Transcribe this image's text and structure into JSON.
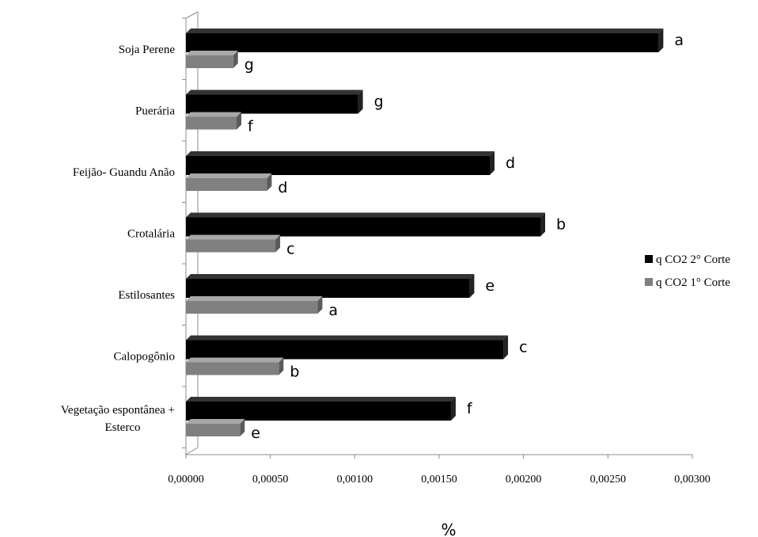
{
  "chart_data": {
    "type": "bar",
    "orientation": "horizontal",
    "categories": [
      "Soja Perene",
      "Puerária",
      "Feijão- Guandu Anão",
      "Crotalária",
      "Estilosantes",
      "Calopogônio",
      "Vegetação espontânea + Esterco"
    ],
    "series": [
      {
        "name": "q CO2 2° Corte",
        "color": "#000000",
        "values": [
          0.0028,
          0.00102,
          0.0018,
          0.0021,
          0.00168,
          0.00188,
          0.00157
        ],
        "letters": [
          "a",
          "g",
          "d",
          "b",
          "e",
          "c",
          "f"
        ]
      },
      {
        "name": "q CO2 1° Corte",
        "color": "#808080",
        "values": [
          0.00028,
          0.0003,
          0.00048,
          0.00053,
          0.00078,
          0.00055,
          0.00032
        ],
        "letters": [
          "g",
          "f",
          "d",
          "c",
          "a",
          "b",
          "e"
        ]
      }
    ],
    "xlabel": "%",
    "ylabel": "",
    "xlim": [
      0,
      0.003
    ],
    "xticks": [
      "0,00000",
      "0,00050",
      "0,00100",
      "0,00150",
      "0,00200",
      "0,00250",
      "0,00300"
    ],
    "grid": false,
    "legend_position": "right"
  }
}
